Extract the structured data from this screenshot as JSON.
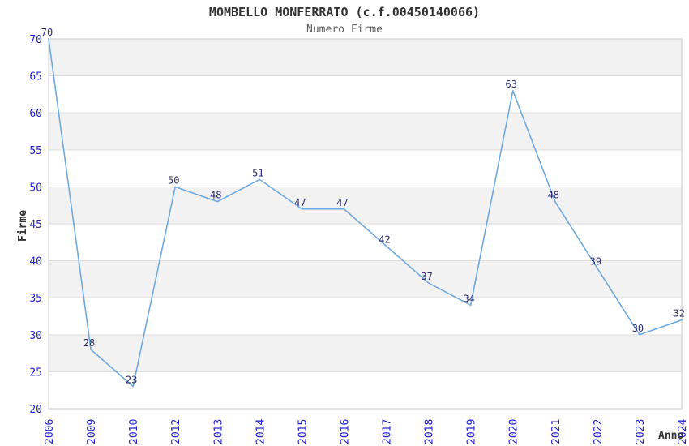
{
  "title": "MOMBELLO MONFERRATO (c.f.00450140066)",
  "subtitle": "Numero Firme",
  "y_axis_label": "Firme",
  "x_axis_label": "Anno",
  "colors": {
    "line": "#6fa9dd",
    "tick_label": "#2323cc",
    "data_label": "#2d2d6e",
    "band_gray": "#f2f2f2",
    "band_white": "#ffffff",
    "grid_line": "#dedede",
    "plot_border": "#c8c8c8",
    "title": "#333333",
    "subtitle": "#606060",
    "axis_title": "#333333",
    "background": "#ffffff"
  },
  "chart_data": {
    "type": "line",
    "title": "MOMBELLO MONFERRATO (c.f.00450140066)",
    "subtitle": "Numero Firme",
    "xlabel": "Anno",
    "ylabel": "Firme",
    "categories": [
      "2006",
      "2009",
      "2010",
      "2012",
      "2013",
      "2014",
      "2015",
      "2016",
      "2017",
      "2018",
      "2019",
      "2020",
      "2021",
      "2022",
      "2023",
      "2024"
    ],
    "values": [
      70,
      28,
      23,
      50,
      48,
      51,
      47,
      47,
      42,
      37,
      34,
      63,
      48,
      39,
      30,
      32
    ],
    "ylim": [
      20,
      70
    ],
    "y_tick_step": 5,
    "y_ticks": [
      20,
      25,
      30,
      35,
      40,
      45,
      50,
      55,
      60,
      65,
      70
    ],
    "grid": "horizontal-bands-alternating",
    "legend": "none",
    "data_labels": "shown-above-points",
    "x_tick_rotation": -90
  }
}
